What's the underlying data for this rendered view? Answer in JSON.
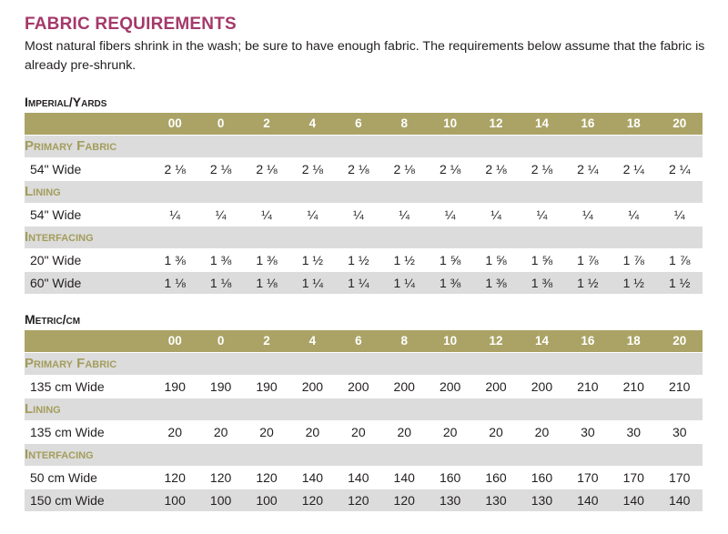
{
  "title": "FABRIC REQUIREMENTS",
  "intro": "Most natural fibers shrink in the wash; be sure to have enough fabric. The requirements below assume that the fabric is already pre-shrunk.",
  "sizes": [
    "00",
    "0",
    "2",
    "4",
    "6",
    "8",
    "10",
    "12",
    "14",
    "16",
    "18",
    "20"
  ],
  "colors": {
    "title": "#a4396a",
    "header_bar": "#aaa365",
    "category_text": "#a39d5c",
    "shade": "#dcdcdc"
  },
  "imperial": {
    "title": "Imperial/Yards",
    "primary_label": "Primary Fabric",
    "primary": {
      "label": "54\" Wide",
      "values": [
        "2 ⅛",
        "2 ⅛",
        "2 ⅛",
        "2 ⅛",
        "2 ⅛",
        "2 ⅛",
        "2 ⅛",
        "2 ⅛",
        "2 ⅛",
        "2 ¼",
        "2 ¼",
        "2 ¼"
      ]
    },
    "lining_label": "Lining",
    "lining": {
      "label": "54\" Wide",
      "values": [
        "¼",
        "¼",
        "¼",
        "¼",
        "¼",
        "¼",
        "¼",
        "¼",
        "¼",
        "¼",
        "¼",
        "¼"
      ]
    },
    "interfacing_label": "Interfacing",
    "interfacing_20": {
      "label": "20\" Wide",
      "values": [
        "1 ⅜",
        "1 ⅜",
        "1 ⅜",
        "1 ½",
        "1 ½",
        "1 ½",
        "1 ⅝",
        "1 ⅝",
        "1 ⅝",
        "1 ⅞",
        "1 ⅞",
        "1 ⅞"
      ]
    },
    "interfacing_60": {
      "label": "60\" Wide",
      "values": [
        "1 ⅛",
        "1 ⅛",
        "1 ⅛",
        "1 ¼",
        "1 ¼",
        "1 ¼",
        "1 ⅜",
        "1 ⅜",
        "1 ⅜",
        "1 ½",
        "1 ½",
        "1 ½"
      ]
    }
  },
  "metric": {
    "title": "Metric/cm",
    "primary_label": "Primary Fabric",
    "primary": {
      "label": "135 cm Wide",
      "values": [
        "190",
        "190",
        "190",
        "200",
        "200",
        "200",
        "200",
        "200",
        "200",
        "210",
        "210",
        "210"
      ]
    },
    "lining_label": "Lining",
    "lining": {
      "label": "135 cm Wide",
      "values": [
        "20",
        "20",
        "20",
        "20",
        "20",
        "20",
        "20",
        "20",
        "20",
        "30",
        "30",
        "30"
      ]
    },
    "interfacing_label": "Interfacing",
    "interfacing_50": {
      "label": "50 cm Wide",
      "values": [
        "120",
        "120",
        "120",
        "140",
        "140",
        "140",
        "160",
        "160",
        "160",
        "170",
        "170",
        "170"
      ]
    },
    "interfacing_150": {
      "label": "150 cm Wide",
      "values": [
        "100",
        "100",
        "100",
        "120",
        "120",
        "120",
        "130",
        "130",
        "130",
        "140",
        "140",
        "140"
      ]
    }
  }
}
